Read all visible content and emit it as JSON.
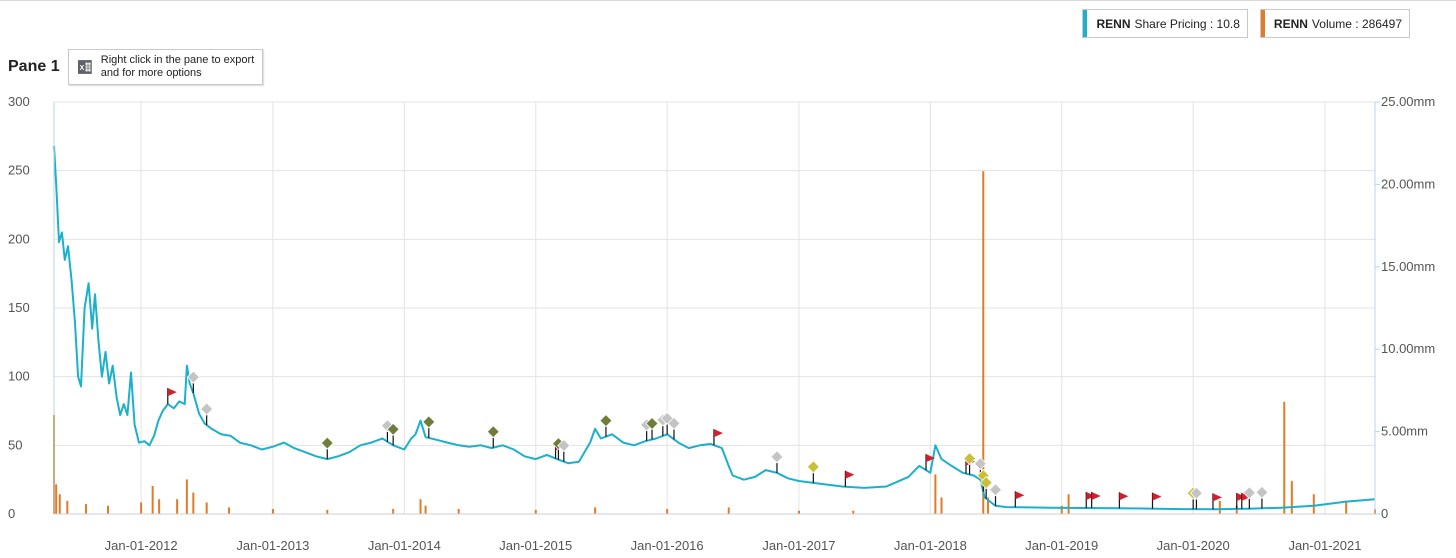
{
  "legend": {
    "items": [
      {
        "ticker": "RENN",
        "label": "Share Pricing : 10.8",
        "color": "#1bb0cc"
      },
      {
        "ticker": "RENN",
        "label": "Volume : 286497",
        "color": "#e07b28"
      }
    ]
  },
  "pane": {
    "title": "Pane 1",
    "export_hint": "Right click in the pane to export and for more options",
    "export_icon": "excel-icon"
  },
  "chart_data": {
    "type": "line",
    "x_range": [
      "2011-05-04",
      "2021-05-20"
    ],
    "x_ticks": [
      "Jan-01-2012",
      "Jan-01-2013",
      "Jan-01-2014",
      "Jan-01-2015",
      "Jan-01-2016",
      "Jan-01-2017",
      "Jan-01-2018",
      "Jan-01-2019",
      "Jan-01-2020",
      "Jan-01-2021"
    ],
    "y_left": {
      "ticks": [
        "0",
        "50",
        "100",
        "150",
        "200",
        "250",
        "300"
      ],
      "ylim": [
        0,
        300
      ]
    },
    "y_right": {
      "ticks": [
        "0",
        "5.00mm",
        "10.00mm",
        "15.00mm",
        "20.00mm",
        "25.00mm"
      ],
      "ylim": [
        0,
        25000000
      ]
    },
    "grid": true,
    "legend_position": "top-right",
    "series": [
      {
        "name": "Share Pricing",
        "axis": "left",
        "color": "#1bb0cc",
        "points": [
          [
            "2011-05-04",
            268
          ],
          [
            "2011-05-10",
            240
          ],
          [
            "2011-05-18",
            198
          ],
          [
            "2011-05-26",
            205
          ],
          [
            "2011-06-03",
            185
          ],
          [
            "2011-06-12",
            195
          ],
          [
            "2011-06-22",
            170
          ],
          [
            "2011-07-01",
            140
          ],
          [
            "2011-07-10",
            100
          ],
          [
            "2011-07-18",
            93
          ],
          [
            "2011-07-28",
            150
          ],
          [
            "2011-08-08",
            168
          ],
          [
            "2011-08-18",
            135
          ],
          [
            "2011-08-26",
            160
          ],
          [
            "2011-09-05",
            125
          ],
          [
            "2011-09-14",
            100
          ],
          [
            "2011-09-24",
            118
          ],
          [
            "2011-10-04",
            95
          ],
          [
            "2011-10-14",
            108
          ],
          [
            "2011-10-25",
            85
          ],
          [
            "2011-11-04",
            72
          ],
          [
            "2011-11-14",
            80
          ],
          [
            "2011-11-24",
            72
          ],
          [
            "2011-12-04",
            103
          ],
          [
            "2011-12-14",
            65
          ],
          [
            "2011-12-26",
            52
          ],
          [
            "2012-01-10",
            53
          ],
          [
            "2012-01-24",
            50
          ],
          [
            "2012-02-06",
            57
          ],
          [
            "2012-02-18",
            68
          ],
          [
            "2012-03-01",
            75
          ],
          [
            "2012-03-15",
            80
          ],
          [
            "2012-04-01",
            77
          ],
          [
            "2012-04-16",
            82
          ],
          [
            "2012-05-01",
            80
          ],
          [
            "2012-05-07",
            108
          ],
          [
            "2012-05-15",
            95
          ],
          [
            "2012-05-25",
            88
          ],
          [
            "2012-06-10",
            73
          ],
          [
            "2012-06-25",
            66
          ],
          [
            "2012-07-15",
            62
          ],
          [
            "2012-08-10",
            58
          ],
          [
            "2012-09-05",
            57
          ],
          [
            "2012-10-01",
            52
          ],
          [
            "2012-11-01",
            50
          ],
          [
            "2012-12-01",
            47
          ],
          [
            "2013-01-01",
            49
          ],
          [
            "2013-02-01",
            52
          ],
          [
            "2013-03-01",
            48
          ],
          [
            "2013-04-01",
            45
          ],
          [
            "2013-05-01",
            42
          ],
          [
            "2013-06-01",
            40
          ],
          [
            "2013-07-01",
            42
          ],
          [
            "2013-08-01",
            45
          ],
          [
            "2013-09-01",
            50
          ],
          [
            "2013-10-01",
            52
          ],
          [
            "2013-11-01",
            55
          ],
          [
            "2013-12-01",
            50
          ],
          [
            "2014-01-01",
            47
          ],
          [
            "2014-01-20",
            55
          ],
          [
            "2014-02-01",
            58
          ],
          [
            "2014-02-15",
            68
          ],
          [
            "2014-03-01",
            56
          ],
          [
            "2014-04-01",
            54
          ],
          [
            "2014-05-01",
            52
          ],
          [
            "2014-06-01",
            50
          ],
          [
            "2014-07-01",
            49
          ],
          [
            "2014-08-01",
            50
          ],
          [
            "2014-09-01",
            48
          ],
          [
            "2014-10-01",
            50
          ],
          [
            "2014-11-01",
            47
          ],
          [
            "2014-12-01",
            42
          ],
          [
            "2015-01-01",
            40
          ],
          [
            "2015-02-01",
            43
          ],
          [
            "2015-03-01",
            40
          ],
          [
            "2015-04-01",
            37
          ],
          [
            "2015-05-01",
            38
          ],
          [
            "2015-06-01",
            52
          ],
          [
            "2015-06-15",
            62
          ],
          [
            "2015-07-01",
            55
          ],
          [
            "2015-08-01",
            58
          ],
          [
            "2015-09-01",
            52
          ],
          [
            "2015-10-01",
            50
          ],
          [
            "2015-11-01",
            53
          ],
          [
            "2015-12-01",
            55
          ],
          [
            "2016-01-01",
            58
          ],
          [
            "2016-02-01",
            52
          ],
          [
            "2016-03-01",
            48
          ],
          [
            "2016-04-01",
            50
          ],
          [
            "2016-05-01",
            51
          ],
          [
            "2016-06-01",
            48
          ],
          [
            "2016-06-20",
            35
          ],
          [
            "2016-07-01",
            28
          ],
          [
            "2016-08-01",
            25
          ],
          [
            "2016-09-01",
            27
          ],
          [
            "2016-10-01",
            32
          ],
          [
            "2016-11-01",
            30
          ],
          [
            "2016-12-01",
            26
          ],
          [
            "2017-01-01",
            24
          ],
          [
            "2017-03-01",
            22
          ],
          [
            "2017-05-01",
            20
          ],
          [
            "2017-07-01",
            19
          ],
          [
            "2017-09-01",
            20
          ],
          [
            "2017-11-01",
            27
          ],
          [
            "2017-12-01",
            35
          ],
          [
            "2018-01-01",
            30
          ],
          [
            "2018-01-15",
            50
          ],
          [
            "2018-02-01",
            40
          ],
          [
            "2018-03-01",
            35
          ],
          [
            "2018-04-01",
            30
          ],
          [
            "2018-05-01",
            28
          ],
          [
            "2018-05-20",
            25
          ],
          [
            "2018-06-01",
            12
          ],
          [
            "2018-07-01",
            6
          ],
          [
            "2018-08-01",
            5
          ],
          [
            "2018-10-01",
            4.8
          ],
          [
            "2018-12-01",
            4.6
          ],
          [
            "2019-03-01",
            4.4
          ],
          [
            "2019-06-01",
            4.2
          ],
          [
            "2019-09-01",
            3.9
          ],
          [
            "2019-12-01",
            3.6
          ],
          [
            "2020-03-01",
            3.4
          ],
          [
            "2020-06-01",
            3.8
          ],
          [
            "2020-09-01",
            4.6
          ],
          [
            "2020-12-01",
            6
          ],
          [
            "2021-03-01",
            9
          ],
          [
            "2021-05-20",
            10.8
          ]
        ]
      },
      {
        "name": "Volume",
        "axis": "right",
        "type": "bar",
        "color": "#e07b28",
        "points": [
          [
            "2011-05-04",
            6000000
          ],
          [
            "2011-05-10",
            1800000
          ],
          [
            "2011-05-20",
            1200000
          ],
          [
            "2011-06-10",
            800000
          ],
          [
            "2011-08-01",
            600000
          ],
          [
            "2011-10-01",
            500000
          ],
          [
            "2012-01-01",
            700000
          ],
          [
            "2012-02-02",
            1700000
          ],
          [
            "2012-02-20",
            900000
          ],
          [
            "2012-04-10",
            900000
          ],
          [
            "2012-05-07",
            2100000
          ],
          [
            "2012-05-25",
            1300000
          ],
          [
            "2012-07-01",
            700000
          ],
          [
            "2012-09-01",
            400000
          ],
          [
            "2013-01-01",
            300000
          ],
          [
            "2013-06-01",
            250000
          ],
          [
            "2013-12-01",
            300000
          ],
          [
            "2014-02-15",
            900000
          ],
          [
            "2014-03-01",
            500000
          ],
          [
            "2014-06-01",
            300000
          ],
          [
            "2015-01-01",
            250000
          ],
          [
            "2015-06-15",
            400000
          ],
          [
            "2016-01-01",
            300000
          ],
          [
            "2016-06-20",
            400000
          ],
          [
            "2017-01-01",
            200000
          ],
          [
            "2017-06-01",
            200000
          ],
          [
            "2018-01-15",
            2400000
          ],
          [
            "2018-02-01",
            1000000
          ],
          [
            "2018-05-28",
            20800000
          ],
          [
            "2018-06-10",
            1000000
          ],
          [
            "2019-01-01",
            500000
          ],
          [
            "2019-01-20",
            1200000
          ],
          [
            "2020-03-15",
            800000
          ],
          [
            "2020-05-01",
            500000
          ],
          [
            "2020-09-10",
            6800000
          ],
          [
            "2020-10-01",
            2000000
          ],
          [
            "2020-12-01",
            1200000
          ],
          [
            "2021-03-01",
            800000
          ],
          [
            "2021-05-20",
            286497
          ]
        ]
      }
    ],
    "event_markers": [
      {
        "date": "2012-03-15",
        "type": "flag"
      },
      {
        "date": "2012-05-25",
        "type": "diamond-gray"
      },
      {
        "date": "2012-07-01",
        "type": "diamond-gray"
      },
      {
        "date": "2013-06-01",
        "type": "diamond-olive"
      },
      {
        "date": "2013-11-15",
        "type": "diamond-gray"
      },
      {
        "date": "2013-12-01",
        "type": "diamond-olive"
      },
      {
        "date": "2014-03-10",
        "type": "diamond-olive"
      },
      {
        "date": "2014-09-05",
        "type": "diamond-olive"
      },
      {
        "date": "2015-02-25",
        "type": "flag"
      },
      {
        "date": "2015-03-05",
        "type": "diamond-olive"
      },
      {
        "date": "2015-03-20",
        "type": "diamond-gray"
      },
      {
        "date": "2015-07-15",
        "type": "diamond-olive"
      },
      {
        "date": "2015-11-05",
        "type": "diamond-gray"
      },
      {
        "date": "2015-11-20",
        "type": "diamond-olive"
      },
      {
        "date": "2015-12-20",
        "type": "diamond-gray"
      },
      {
        "date": "2016-01-01",
        "type": "diamond-gray"
      },
      {
        "date": "2016-01-20",
        "type": "diamond-gray"
      },
      {
        "date": "2016-05-10",
        "type": "flag"
      },
      {
        "date": "2016-11-01",
        "type": "diamond-gray"
      },
      {
        "date": "2017-02-10",
        "type": "diamond-yellow"
      },
      {
        "date": "2017-05-10",
        "type": "flag"
      },
      {
        "date": "2017-12-20",
        "type": "flag"
      },
      {
        "date": "2018-04-10",
        "type": "flag"
      },
      {
        "date": "2018-04-20",
        "type": "diamond-yellow"
      },
      {
        "date": "2018-05-20",
        "type": "diamond-gray"
      },
      {
        "date": "2018-05-28",
        "type": "diamond-yellow"
      },
      {
        "date": "2018-06-05",
        "type": "diamond-yellow"
      },
      {
        "date": "2018-07-01",
        "type": "diamond-gray"
      },
      {
        "date": "2018-08-25",
        "type": "flag"
      },
      {
        "date": "2019-03-10",
        "type": "flag"
      },
      {
        "date": "2019-03-25",
        "type": "flag"
      },
      {
        "date": "2019-06-10",
        "type": "flag"
      },
      {
        "date": "2019-09-10",
        "type": "flag"
      },
      {
        "date": "2020-01-01",
        "type": "diamond-yellow"
      },
      {
        "date": "2020-01-10",
        "type": "diamond-gray"
      },
      {
        "date": "2020-02-25",
        "type": "flag"
      },
      {
        "date": "2020-05-01",
        "type": "flag"
      },
      {
        "date": "2020-05-15",
        "type": "flag"
      },
      {
        "date": "2020-06-05",
        "type": "diamond-gray"
      },
      {
        "date": "2020-07-10",
        "type": "diamond-gray"
      }
    ]
  }
}
